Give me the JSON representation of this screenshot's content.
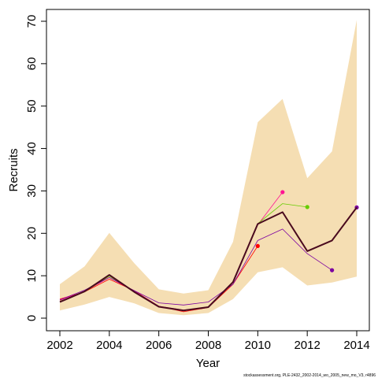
{
  "chart_data": {
    "type": "line",
    "xlabel": "Year",
    "ylabel": "Recruits",
    "xlim": [
      2002,
      2014
    ],
    "ylim": [
      0,
      70
    ],
    "x_ticks": [
      2002,
      2004,
      2006,
      2008,
      2010,
      2012,
      2014
    ],
    "y_ticks": [
      0,
      10,
      20,
      30,
      40,
      50,
      60,
      70
    ],
    "footer": "stockassessment.org, PLE-2432_2002-2014_wo_2005_new_mo_V3, r4896",
    "confidence_band": {
      "color": "#f5deb3",
      "x": [
        2002,
        2003,
        2004,
        2005,
        2006,
        2007,
        2008,
        2009,
        2010,
        2011,
        2012,
        2013,
        2014
      ],
      "lower": [
        1.8,
        3.2,
        5.0,
        3.5,
        1.2,
        0.7,
        1.2,
        4.5,
        10.8,
        12.0,
        7.7,
        8.4,
        9.8
      ],
      "upper": [
        8.0,
        12.2,
        20.1,
        13.0,
        6.8,
        5.8,
        6.6,
        18.0,
        46.2,
        51.7,
        33.0,
        39.3,
        70.3
      ]
    },
    "series": [
      {
        "color": "#4a0a1e",
        "width": 2,
        "x": [
          2002,
          2003,
          2004,
          2005,
          2006,
          2007,
          2008,
          2009,
          2010,
          2011,
          2012,
          2013,
          2014
        ],
        "values": [
          3.8,
          6.3,
          10.2,
          6.2,
          2.7,
          1.8,
          2.6,
          8.5,
          22.2,
          25.0,
          15.8,
          18.3,
          26.1
        ]
      },
      {
        "color": "#ff0000",
        "width": 0.8,
        "endpoint": true,
        "x": [
          2002,
          2003,
          2004,
          2005,
          2006,
          2007,
          2008,
          2009,
          2010
        ],
        "values": [
          4.5,
          6.2,
          9.2,
          6.5,
          2.8,
          1.5,
          2.5,
          8.0,
          17.0
        ]
      },
      {
        "color": "#ff1493",
        "width": 0.8,
        "endpoint": true,
        "x": [
          2002,
          2003,
          2004,
          2005,
          2006,
          2007,
          2008,
          2009,
          2010,
          2011
        ],
        "values": [
          4.2,
          6.3,
          9.6,
          6.4,
          2.8,
          1.9,
          2.6,
          8.4,
          22.0,
          29.7
        ]
      },
      {
        "color": "#66cc00",
        "width": 0.8,
        "endpoint": true,
        "x": [
          2002,
          2003,
          2004,
          2005,
          2006,
          2007,
          2008,
          2009,
          2010,
          2011,
          2012
        ],
        "values": [
          4.0,
          6.2,
          9.9,
          6.3,
          2.7,
          1.8,
          2.6,
          8.5,
          22.3,
          27.0,
          26.2
        ]
      },
      {
        "color": "#7b00a0",
        "width": 0.8,
        "endpoint": true,
        "x": [
          2002,
          2003,
          2004,
          2005,
          2006,
          2007,
          2008,
          2009,
          2010,
          2011,
          2012,
          2013
        ],
        "values": [
          4.3,
          6.6,
          9.6,
          6.5,
          3.6,
          3.1,
          3.8,
          8.0,
          18.3,
          21.0,
          15.2,
          11.3
        ]
      },
      {
        "color": "#7b00a0",
        "width": 0.8,
        "endpoint": true,
        "x": [
          2002,
          2003,
          2004,
          2005,
          2006,
          2007,
          2008,
          2009,
          2010,
          2011,
          2012,
          2013,
          2014
        ],
        "values": [
          3.8,
          6.3,
          10.2,
          6.2,
          2.7,
          1.8,
          2.6,
          8.5,
          22.2,
          25.0,
          15.8,
          18.3,
          26.1
        ]
      }
    ]
  }
}
